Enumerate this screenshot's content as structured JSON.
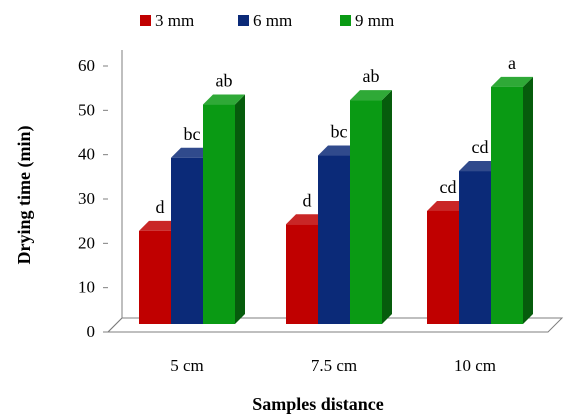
{
  "chart_data": {
    "type": "bar",
    "style": "3d-clustered-column",
    "categories": [
      "5 cm",
      "7.5 cm",
      "10 cm"
    ],
    "series": [
      {
        "name": "3 mm",
        "values": [
          21,
          22.5,
          25.5
        ],
        "labels": [
          "d",
          "d",
          "cd"
        ],
        "color": "#c00000"
      },
      {
        "name": "6 mm",
        "values": [
          37.5,
          38,
          34.5
        ],
        "labels": [
          "bc",
          "bc",
          "cd"
        ],
        "color": "#0b2a78"
      },
      {
        "name": "9 mm",
        "values": [
          49.5,
          50.5,
          53.5
        ],
        "labels": [
          "ab",
          "ab",
          "a"
        ],
        "color": "#0a9a14"
      }
    ],
    "title": "",
    "xlabel": "Samples distance",
    "ylabel": "Drying time (min)",
    "ylim": [
      0,
      60
    ],
    "yticks": [
      0,
      10,
      20,
      30,
      40,
      50,
      60
    ],
    "legend_position": "top",
    "grid": false
  }
}
